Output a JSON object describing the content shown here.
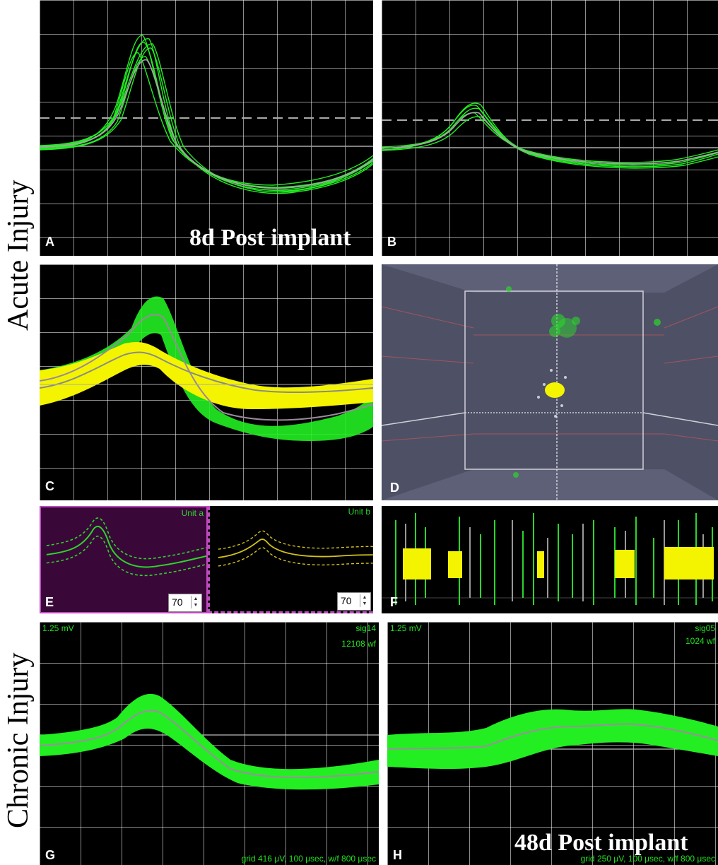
{
  "side_labels": {
    "acute": "Acute Injury",
    "chronic": "Chronic Injury"
  },
  "panels": {
    "A": {
      "letter": "A",
      "caption": "8d Post implant"
    },
    "B": {
      "letter": "B"
    },
    "C": {
      "letter": "C"
    },
    "D": {
      "letter": "D"
    },
    "E": {
      "letter": "E",
      "unit_a": "Unit a",
      "unit_b": "Unit b",
      "spin_a": "70",
      "spin_b": "70"
    },
    "F": {
      "letter": "F"
    },
    "G": {
      "letter": "G",
      "scale": "1.25 mV",
      "sig": "sig14",
      "wf": "12108 wf",
      "grid": "grid 416 μV, 100 μsec, w/f 800 μsec"
    },
    "H": {
      "letter": "H",
      "caption": "48d Post implant",
      "scale": "1.25 mV",
      "sig": "sig05",
      "wf": "1024 wf",
      "grid": "grid 250 μV, 100 μsec, w/f 800 μsec"
    }
  },
  "colors": {
    "green": "#22ee22",
    "yellow": "#f4f400",
    "purple": "#3a0838",
    "cube_bg": "#4e5066"
  }
}
